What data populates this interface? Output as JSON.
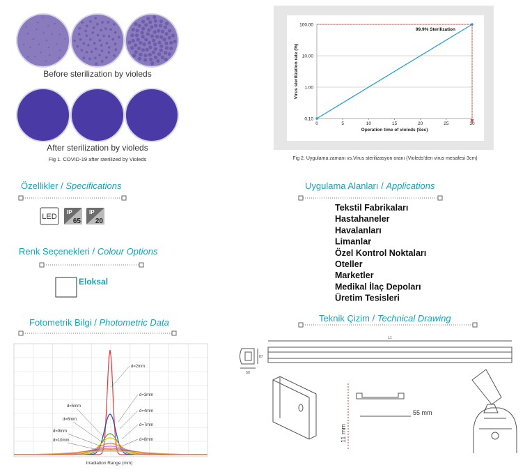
{
  "figure1": {
    "before_label": "Before sterilization by violeds",
    "after_label": "After sterilization by violeds",
    "caption": "Fig 1. COVID-19 after sterilized by Violeds"
  },
  "figure2": {
    "chart_data": {
      "type": "line",
      "xlabel": "Operation time of violeds (Sec)",
      "ylabel": "Virus sterilization rate (%)",
      "annotation": "99.9% Sterilization",
      "x": [
        0,
        30
      ],
      "series": [
        {
          "color": "#2a9fd6",
          "values": [
            0.1,
            100
          ]
        }
      ],
      "xlim": [
        0,
        30
      ],
      "ylim": [
        0.1,
        100
      ],
      "xticks": [
        0,
        5,
        10,
        15,
        20,
        25,
        30
      ],
      "yticks": [
        {
          "value": 0.1,
          "label": "0.10"
        },
        {
          "value": 1,
          "label": "1.00"
        },
        {
          "value": 10,
          "label": "10.00"
        },
        {
          "value": 100,
          "label": "100.00"
        }
      ],
      "log_y": true,
      "grid": true,
      "guide_color": "#e53935"
    },
    "caption": "Fig 2. Uygulama zamanı vs.Virus sterilizasyon oranı (Violeds'den virus mesafesi 3cm)"
  },
  "specifications": {
    "title": "Özellikler /",
    "subtitle": "Specifications",
    "led": "LED",
    "ip_ratings": [
      {
        "label": "IP",
        "value": 65
      },
      {
        "label": "IP",
        "value": 20
      }
    ]
  },
  "colour_options": {
    "title": "Renk Seçenekleri /",
    "subtitle": "Colour Options",
    "options": [
      "Eloksal"
    ]
  },
  "photometric": {
    "title": "Fotometrik Bilgi /",
    "subtitle": "Photometric Data",
    "distances": [
      "d=2mm",
      "d=3mm",
      "d=4mm",
      "d=5mm",
      "d=6mm",
      "d=7mm",
      "d=8mm",
      "d=9mm",
      "d=10mm"
    ],
    "xlabel": "Irradiation Range (mm)"
  },
  "applications": {
    "title": "Uygulama Alanları /",
    "subtitle": "Applications",
    "items": [
      "Tekstil Fabrikaları",
      "Hastahaneler",
      "Havalanları",
      "Limanlar",
      "Özel Kontrol Noktaları",
      "Oteller",
      "Marketler",
      "Medikal İlaç Depoları",
      "Üretim Tesisleri"
    ]
  },
  "technical": {
    "title": "Teknik Çizim /",
    "subtitle": "Technical Drawing",
    "length_label": "L1",
    "width_label": "50",
    "height_label": "87",
    "clip_width": "55 mm",
    "clip_height": "11 mm"
  }
}
